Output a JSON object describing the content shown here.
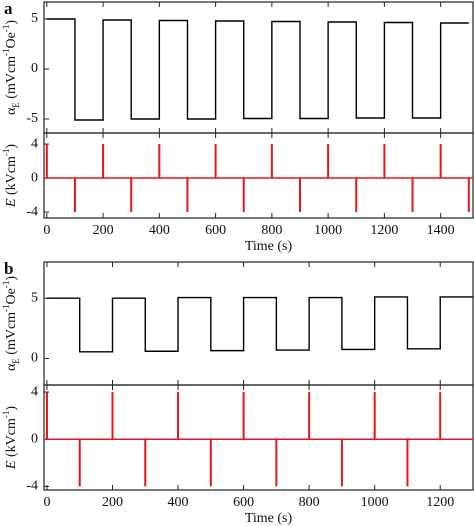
{
  "chart_data": [
    {
      "type": "line",
      "panel_label": "a",
      "ylabel_parts": [
        "α",
        "E",
        " (mVcm",
        "-1",
        "Oe",
        "-1",
        ")"
      ],
      "xlim": [
        -10,
        1515
      ],
      "ylim": [
        -6.4,
        6.7
      ],
      "yticks": [
        -5,
        0,
        5
      ],
      "series": [
        {
          "color": "#000000",
          "x": [
            0,
            100,
            100,
            200,
            200,
            300,
            300,
            400,
            400,
            500,
            500,
            600,
            600,
            700,
            700,
            800,
            800,
            900,
            900,
            1000,
            1000,
            1100,
            1100,
            1200,
            1200,
            1300,
            1300,
            1400,
            1400,
            1500
          ],
          "values": [
            5,
            5,
            -5.1,
            -5.1,
            4.9,
            4.9,
            -5,
            -5,
            4.85,
            4.85,
            -5,
            -5,
            4.8,
            4.8,
            -4.95,
            -4.95,
            4.75,
            4.75,
            -4.95,
            -4.95,
            4.7,
            4.7,
            -4.9,
            -4.9,
            4.65,
            4.65,
            -4.9,
            -4.9,
            4.6,
            4.6
          ]
        }
      ]
    },
    {
      "type": "stem",
      "ylabel_parts": [
        "E",
        " (kVcm",
        "-1",
        ")"
      ],
      "xlabel": "Time (s)",
      "xlim": [
        -10,
        1515
      ],
      "ylim": [
        -4.7,
        5.3
      ],
      "yticks": [
        -4,
        0,
        4
      ],
      "xticks": [
        0,
        200,
        400,
        600,
        800,
        1000,
        1200,
        1400
      ],
      "color": "#e8141b",
      "x": [
        0,
        100,
        200,
        300,
        400,
        500,
        600,
        700,
        800,
        900,
        1000,
        1100,
        1200,
        1300,
        1400,
        1500
      ],
      "values": [
        4,
        -4,
        4,
        -4,
        4,
        -4,
        4,
        -4,
        4,
        -4,
        4,
        -4,
        4,
        -4,
        4,
        -4
      ]
    },
    {
      "type": "line",
      "panel_label": "b",
      "ylabel_parts": [
        "α",
        "E",
        " (mVcm",
        "-1",
        "Oe",
        "-1",
        ")"
      ],
      "xlim": [
        -9,
        1300
      ],
      "ylim": [
        -2.2,
        8
      ],
      "yticks": [
        0,
        5
      ],
      "series": [
        {
          "color": "#000000",
          "x": [
            0,
            100,
            100,
            200,
            200,
            300,
            300,
            400,
            400,
            500,
            500,
            600,
            600,
            700,
            700,
            800,
            800,
            900,
            900,
            1000,
            1000,
            1100,
            1100,
            1200,
            1200,
            1300
          ],
          "values": [
            5,
            5,
            0.55,
            0.55,
            5,
            5,
            0.6,
            0.6,
            5.05,
            5.05,
            0.65,
            0.65,
            5.05,
            5.05,
            0.7,
            0.7,
            5.05,
            5.05,
            0.75,
            0.75,
            5.1,
            5.1,
            0.8,
            0.8,
            5.1,
            5.1
          ]
        }
      ]
    },
    {
      "type": "stem",
      "ylabel_parts": [
        "E",
        " (kVcm",
        "-1",
        ")"
      ],
      "xlabel": "Time (s)",
      "xlim": [
        -9,
        1300
      ],
      "ylim": [
        -4.3,
        4.6
      ],
      "yticks": [
        -4,
        0,
        4
      ],
      "xticks": [
        0,
        200,
        400,
        600,
        800,
        1000,
        1200
      ],
      "color": "#e8141b",
      "x": [
        0,
        100,
        200,
        300,
        400,
        500,
        600,
        700,
        800,
        900,
        1000,
        1100,
        1200
      ],
      "values": [
        4,
        -4,
        4,
        -4,
        4,
        -4,
        4,
        -4,
        4,
        -4,
        4,
        -4,
        4
      ]
    }
  ]
}
